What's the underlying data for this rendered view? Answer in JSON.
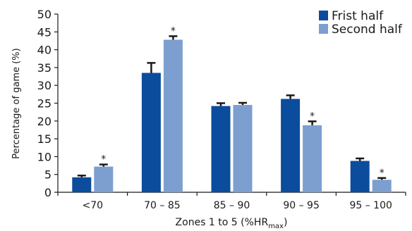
{
  "chart_data": {
    "type": "bar",
    "categories": [
      "<70",
      "70 – 85",
      "85 – 90",
      "90 – 95",
      "95 – 100"
    ],
    "series": [
      {
        "name": "Frist half",
        "color": "#0b4c9c",
        "values": [
          4.2,
          33.5,
          24.2,
          26.2,
          8.8
        ],
        "errors": [
          0.5,
          2.8,
          0.8,
          1.0,
          0.7
        ],
        "significant": [
          false,
          false,
          false,
          false,
          false
        ]
      },
      {
        "name": "Second half",
        "color": "#7c9fcf",
        "values": [
          7.2,
          42.8,
          24.5,
          18.8,
          3.5
        ],
        "errors": [
          0.6,
          1.0,
          0.6,
          1.1,
          0.5
        ],
        "significant": [
          true,
          true,
          false,
          true,
          true
        ]
      }
    ],
    "significance_marker": "*",
    "ylabel": "Percentage of game (%)",
    "xlabel": {
      "main": "Zones 1 to 5 (%HR",
      "subscript": "max",
      "close": ")"
    },
    "ylim": [
      0,
      50
    ],
    "yticks": [
      0,
      5,
      10,
      15,
      20,
      25,
      30,
      35,
      40,
      45,
      50
    ],
    "grid": false,
    "legend_position": "top-right"
  }
}
